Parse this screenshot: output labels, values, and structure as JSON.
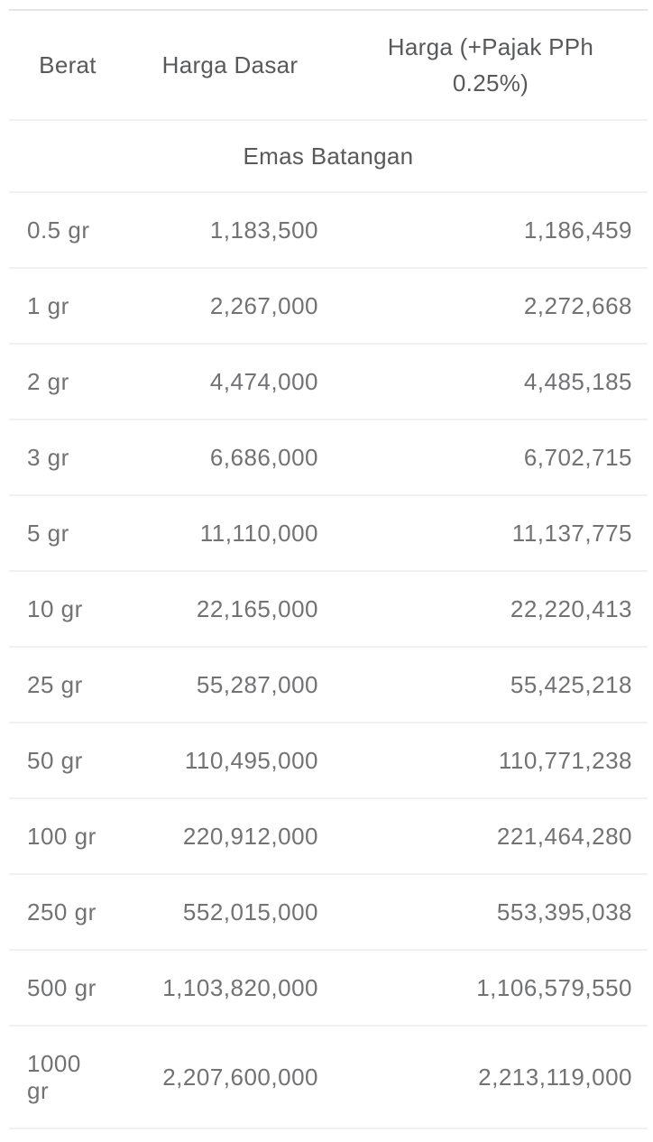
{
  "colors": {
    "background": "#ffffff",
    "header_text": "#58595b",
    "section_text": "#58595b",
    "body_text": "#717274",
    "top_border": "#e5e5e5",
    "row_divider": "#f1f1f1"
  },
  "table": {
    "columns": [
      {
        "label": "Berat"
      },
      {
        "label": "Harga Dasar"
      },
      {
        "label": "Harga (+Pajak PPh 0.25%)"
      }
    ],
    "section_title": "Emas Batangan",
    "rows": [
      {
        "berat": "0.5 gr",
        "harga_dasar": "1,183,500",
        "harga_pajak": "1,186,459"
      },
      {
        "berat": "1 gr",
        "harga_dasar": "2,267,000",
        "harga_pajak": "2,272,668"
      },
      {
        "berat": "2 gr",
        "harga_dasar": "4,474,000",
        "harga_pajak": "4,485,185"
      },
      {
        "berat": "3 gr",
        "harga_dasar": "6,686,000",
        "harga_pajak": "6,702,715"
      },
      {
        "berat": "5 gr",
        "harga_dasar": "11,110,000",
        "harga_pajak": "11,137,775"
      },
      {
        "berat": "10 gr",
        "harga_dasar": "22,165,000",
        "harga_pajak": "22,220,413"
      },
      {
        "berat": "25 gr",
        "harga_dasar": "55,287,000",
        "harga_pajak": "55,425,218"
      },
      {
        "berat": "50 gr",
        "harga_dasar": "110,495,000",
        "harga_pajak": "110,771,238"
      },
      {
        "berat": "100 gr",
        "harga_dasar": "220,912,000",
        "harga_pajak": "221,464,280"
      },
      {
        "berat": "250 gr",
        "harga_dasar": "552,015,000",
        "harga_pajak": "553,395,038"
      },
      {
        "berat": "500 gr",
        "harga_dasar": "1,103,820,000",
        "harga_pajak": "1,106,579,550"
      },
      {
        "berat": "1000 gr",
        "harga_dasar": "2,207,600,000",
        "harga_pajak": "2,213,119,000"
      }
    ]
  }
}
